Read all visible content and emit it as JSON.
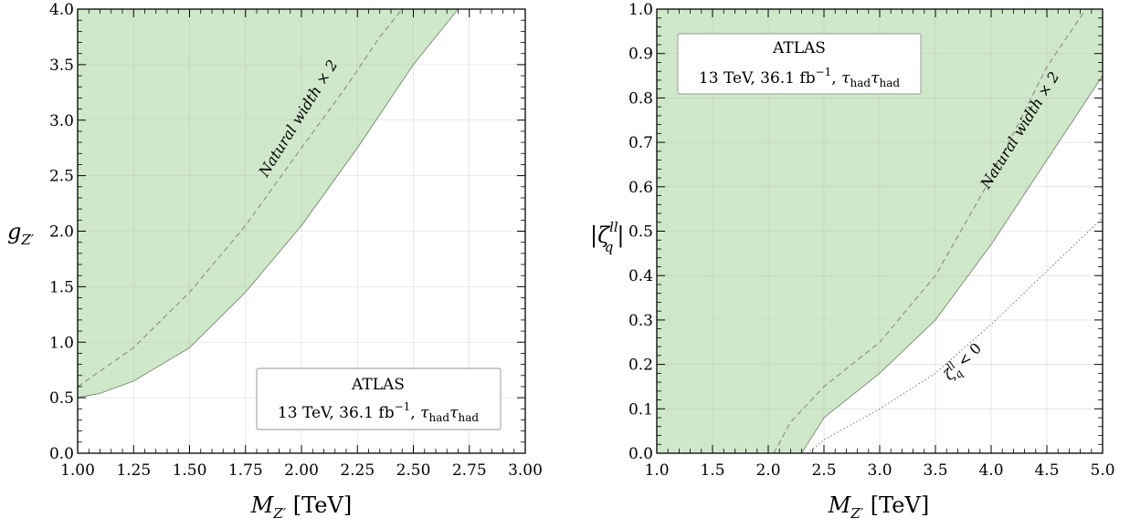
{
  "chart_data": [
    {
      "type": "area",
      "xlabel": "M_{Z'} [TeV]",
      "ylabel": "g_{Z'}",
      "xlim": [
        1.0,
        3.0
      ],
      "ylim": [
        0.0,
        4.0
      ],
      "x_ticks": [
        "1.00",
        "1.25",
        "1.50",
        "1.75",
        "2.00",
        "2.25",
        "2.50",
        "2.75",
        "3.00"
      ],
      "y_ticks": [
        "0.0",
        "0.5",
        "1.0",
        "1.5",
        "2.0",
        "2.5",
        "3.0",
        "3.5",
        "4.0"
      ],
      "grid": true,
      "atlas_box": {
        "title": "ATLAS",
        "energy": "13 TeV, 36.1 fb",
        "lumi_sup": "−1",
        "tau": "τ",
        "tau_sub": "had",
        "position": "bottom-right"
      },
      "series": [
        {
          "style": "solid-boundary-filled-above",
          "color": "#d0e8ca",
          "x": [
            1.0,
            1.1,
            1.25,
            1.5,
            1.75,
            2.0,
            2.25,
            2.5,
            2.7
          ],
          "y": [
            0.5,
            0.54,
            0.65,
            0.95,
            1.45,
            2.05,
            2.75,
            3.5,
            4.0
          ]
        },
        {
          "name": "Natural width × 2",
          "style": "dashed",
          "x": [
            1.0,
            1.25,
            1.5,
            1.75,
            2.0,
            2.2,
            2.35,
            2.45
          ],
          "y": [
            0.6,
            0.95,
            1.45,
            2.05,
            2.75,
            3.3,
            3.75,
            4.0
          ]
        }
      ],
      "annotations": [
        {
          "text": "Natural width × 2",
          "x": 1.85,
          "y": 3.05,
          "rotation": -58
        }
      ]
    },
    {
      "type": "area",
      "xlabel": "M_{Z'} [TeV]",
      "ylabel": "|ζ_q^{ll}|",
      "xlim": [
        1.0,
        5.0
      ],
      "ylim": [
        0.0,
        1.0
      ],
      "x_ticks": [
        "1.0",
        "1.5",
        "2.0",
        "2.5",
        "3.0",
        "3.5",
        "4.0",
        "4.5",
        "5.0"
      ],
      "y_ticks": [
        "0.0",
        "0.1",
        "0.2",
        "0.3",
        "0.4",
        "0.5",
        "0.6",
        "0.7",
        "0.8",
        "0.9",
        "1.0"
      ],
      "grid": true,
      "atlas_box": {
        "title": "ATLAS",
        "energy": "13 TeV, 36.1 fb",
        "lumi_sup": "−1",
        "tau": "τ",
        "tau_sub": "had",
        "position": "top-left"
      },
      "series": [
        {
          "style": "solid-boundary-filled-above",
          "color": "#d0e8ca",
          "x": [
            2.3,
            2.4,
            2.5,
            2.75,
            3.0,
            3.5,
            4.0,
            4.5,
            5.0
          ],
          "y": [
            0.0,
            0.04,
            0.08,
            0.13,
            0.18,
            0.3,
            0.47,
            0.66,
            0.85
          ]
        },
        {
          "name": "Natural width × 2",
          "style": "dashed",
          "x": [
            2.05,
            2.2,
            2.5,
            3.0,
            3.5,
            4.0,
            4.5,
            4.85
          ],
          "y": [
            0.0,
            0.07,
            0.15,
            0.25,
            0.4,
            0.62,
            0.87,
            1.0
          ]
        },
        {
          "name": "ζ_q^{ll} < 0",
          "style": "dotted",
          "x": [
            2.35,
            2.5,
            3.0,
            3.5,
            4.0,
            4.5,
            5.0
          ],
          "y": [
            0.0,
            0.03,
            0.1,
            0.18,
            0.29,
            0.41,
            0.53
          ]
        }
      ],
      "annotations": [
        {
          "text": "Natural width × 2",
          "x": 4.3,
          "y": 0.72,
          "rotation": -58
        },
        {
          "text": "ζ_q^{ll} < 0",
          "x": 3.85,
          "y": 0.17,
          "rotation": -45
        }
      ]
    }
  ],
  "labels": {
    "x_main": "M",
    "x_sub": "Z′",
    "x_unit": " [TeV]",
    "left_y_main": "g",
    "left_y_sub": "Z′",
    "right_y_main": "ζ",
    "right_y_sub": "q",
    "right_y_sup": "ll",
    "natural_width": "Natural width × 2",
    "zeta_main": "ζ",
    "zeta_sub": "q",
    "zeta_sup": "ll",
    "zeta_rel": " < 0"
  }
}
